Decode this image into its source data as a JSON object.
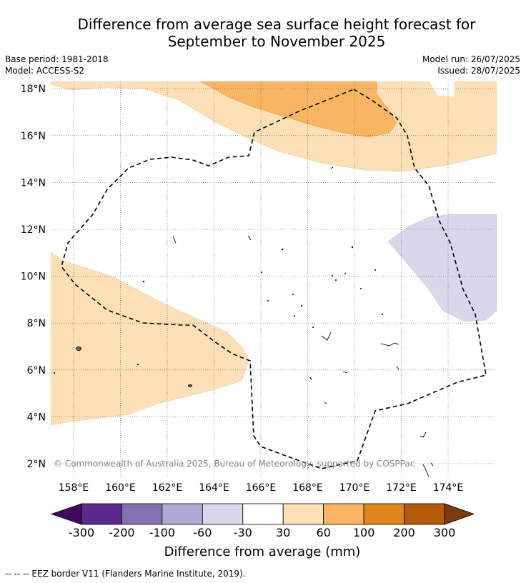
{
  "title": {
    "line1": "Difference from average sea surface height forecast for",
    "line2": "September to November 2025"
  },
  "meta": {
    "base_period": "Base period: 1981-2018",
    "model": "Model: ACCESS-S2",
    "model_run": "Model run: 26/07/2025",
    "issued": "Issued: 28/07/2025"
  },
  "map": {
    "lat_labels": [
      "2°N",
      "4°N",
      "6°N",
      "8°N",
      "10°N",
      "12°N",
      "14°N",
      "16°N",
      "18°N"
    ],
    "lon_labels": [
      "158°E",
      "160°E",
      "162°E",
      "164°E",
      "166°E",
      "168°E",
      "170°E",
      "172°E",
      "174°E"
    ],
    "lat_range": [
      1.5,
      18.3
    ],
    "lon_range": [
      157,
      176
    ],
    "copyright": "© Commonwealth of Australia 2025, Bureau of Meteorology, supported by COSPPac",
    "colors": {
      "light_orange": "#fde0b6",
      "medium_orange": "#f9b561",
      "light_purple": "#d8d8ea"
    }
  },
  "colorbar": {
    "title": "Difference from average (mm)",
    "tick_labels": [
      "-300",
      "-200",
      "-100",
      "-60",
      "-30",
      "30",
      "60",
      "100",
      "200",
      "300"
    ],
    "colors": [
      "#3f0a5e",
      "#5b2a8c",
      "#8273b0",
      "#b0a9d3",
      "#d8d8ea",
      "#ffffff",
      "#fde0b6",
      "#f9b561",
      "#e08519",
      "#b55a0a",
      "#7f3a0b"
    ]
  },
  "footnote": "--  --  -- EEZ border V11 (Flanders Marine Institute, 2019)."
}
